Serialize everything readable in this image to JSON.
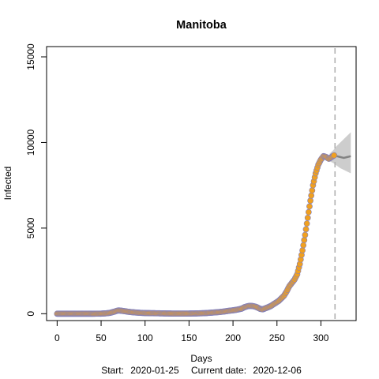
{
  "chart_data": {
    "type": "scatter",
    "title": "Manitoba",
    "xlabel": "Days",
    "ylabel": "Infected",
    "xlim": [
      -12,
      340
    ],
    "ylim": [
      -400,
      15600
    ],
    "x_ticks": [
      0,
      50,
      100,
      150,
      200,
      250,
      300
    ],
    "y_ticks": [
      0,
      5000,
      10000,
      15000
    ],
    "grid": false,
    "footer": {
      "start_label": "Start:",
      "start_date": "2020-01-25",
      "current_label": "Current date:",
      "current_date": "2020-12-06"
    },
    "current_day": 316,
    "series": [
      {
        "color": "#f0a020",
        "edge_color": "#8080c0",
        "x": [
          0,
          10,
          20,
          30,
          40,
          50,
          55,
          60,
          65,
          68,
          70,
          72,
          75,
          78,
          80,
          85,
          90,
          95,
          100,
          110,
          120,
          130,
          140,
          150,
          160,
          170,
          175,
          180,
          185,
          190,
          195,
          200,
          205,
          210,
          213,
          216,
          219,
          222,
          225,
          228,
          231,
          234,
          237,
          240,
          243,
          246,
          249,
          252,
          255,
          258,
          261,
          264,
          267,
          270,
          273,
          276,
          279,
          282,
          285,
          288,
          291,
          294,
          297,
          300,
          303,
          306,
          309,
          312,
          315
        ],
        "values": [
          0,
          0,
          0,
          0,
          0,
          5,
          20,
          50,
          120,
          170,
          190,
          180,
          160,
          140,
          120,
          90,
          70,
          50,
          40,
          30,
          20,
          10,
          10,
          10,
          20,
          40,
          60,
          80,
          100,
          130,
          170,
          200,
          240,
          300,
          380,
          430,
          460,
          450,
          420,
          360,
          280,
          260,
          320,
          380,
          450,
          550,
          650,
          750,
          900,
          1050,
          1300,
          1600,
          1800,
          2000,
          2300,
          2900,
          3700,
          4600,
          5600,
          6600,
          7500,
          8200,
          8700,
          9000,
          9200,
          9150,
          9050,
          9150,
          9250
        ]
      }
    ],
    "forecast": {
      "color": "#707070",
      "x": [
        310,
        314,
        318,
        322,
        326,
        330,
        334
      ],
      "median": [
        9100,
        9200,
        9200,
        9150,
        9100,
        9150,
        9200
      ],
      "band_low": [
        8900,
        8800,
        8650,
        8500,
        8400,
        8300,
        8200
      ],
      "band_high": [
        9350,
        9550,
        9800,
        10000,
        10200,
        10400,
        10600
      ]
    }
  }
}
